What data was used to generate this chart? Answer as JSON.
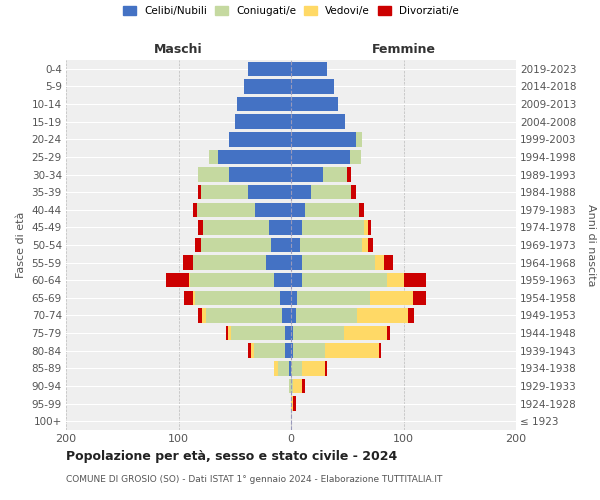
{
  "age_groups": [
    "100+",
    "95-99",
    "90-94",
    "85-89",
    "80-84",
    "75-79",
    "70-74",
    "65-69",
    "60-64",
    "55-59",
    "50-54",
    "45-49",
    "40-44",
    "35-39",
    "30-34",
    "25-29",
    "20-24",
    "15-19",
    "10-14",
    "5-9",
    "0-4"
  ],
  "birth_years": [
    "≤ 1923",
    "1924-1928",
    "1929-1933",
    "1934-1938",
    "1939-1943",
    "1944-1948",
    "1949-1953",
    "1954-1958",
    "1959-1963",
    "1964-1968",
    "1969-1973",
    "1974-1978",
    "1979-1983",
    "1984-1988",
    "1989-1993",
    "1994-1998",
    "1999-2003",
    "2004-2008",
    "2009-2013",
    "2014-2018",
    "2019-2023"
  ],
  "male": {
    "celibi": [
      0,
      0,
      0,
      2,
      5,
      5,
      8,
      10,
      15,
      22,
      18,
      20,
      32,
      38,
      55,
      65,
      55,
      50,
      48,
      42,
      38
    ],
    "coniugati": [
      0,
      0,
      2,
      10,
      28,
      48,
      68,
      75,
      75,
      65,
      62,
      58,
      52,
      42,
      28,
      8,
      0,
      0,
      0,
      0,
      0
    ],
    "vedovi": [
      0,
      0,
      0,
      3,
      3,
      3,
      3,
      2,
      1,
      0,
      0,
      0,
      0,
      0,
      0,
      0,
      0,
      0,
      0,
      0,
      0
    ],
    "divorziati": [
      0,
      0,
      0,
      0,
      2,
      2,
      4,
      8,
      20,
      9,
      5,
      5,
      3,
      3,
      0,
      0,
      0,
      0,
      0,
      0,
      0
    ]
  },
  "female": {
    "nubili": [
      0,
      0,
      0,
      0,
      2,
      2,
      4,
      5,
      10,
      10,
      8,
      10,
      12,
      18,
      28,
      52,
      58,
      48,
      42,
      38,
      32
    ],
    "coniugate": [
      0,
      0,
      2,
      10,
      28,
      45,
      55,
      65,
      75,
      65,
      55,
      55,
      48,
      35,
      22,
      10,
      5,
      0,
      0,
      0,
      0
    ],
    "vedove": [
      0,
      2,
      8,
      20,
      48,
      38,
      45,
      38,
      15,
      8,
      5,
      3,
      0,
      0,
      0,
      0,
      0,
      0,
      0,
      0,
      0
    ],
    "divorziate": [
      0,
      2,
      2,
      2,
      2,
      3,
      5,
      12,
      20,
      8,
      5,
      3,
      5,
      5,
      3,
      0,
      0,
      0,
      0,
      0,
      0
    ]
  },
  "colors": {
    "celibi": "#4472c4",
    "coniugati": "#c5d9a0",
    "vedovi": "#ffd966",
    "divorziati": "#cc0000"
  },
  "title": "Popolazione per età, sesso e stato civile - 2024",
  "subtitle": "COMUNE DI GROSIO (SO) - Dati ISTAT 1° gennaio 2024 - Elaborazione TUTTITALIA.IT",
  "ylabel_left": "Fasce di età",
  "ylabel_right": "Anni di nascita",
  "xlabel_left": "Maschi",
  "xlabel_right": "Femmine",
  "xlim": 200,
  "legend_labels": [
    "Celibi/Nubili",
    "Coniugati/e",
    "Vedovi/e",
    "Divorziati/e"
  ],
  "background_color": "#ffffff",
  "plot_bg": "#efefef"
}
